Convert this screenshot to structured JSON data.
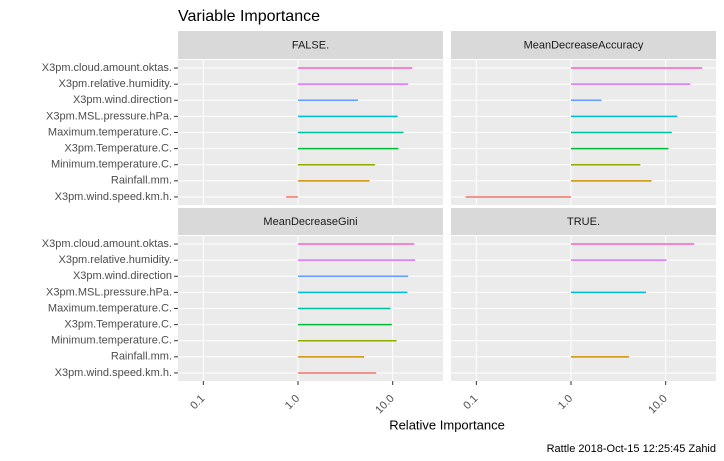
{
  "chart_data": {
    "type": "bar",
    "title": "Variable Importance",
    "x_label": "Relative Importance",
    "caption": "Rattle 2018-Oct-15 12:25:45 Zahid",
    "log_x": true,
    "grid": true,
    "categories": [
      "X3pm.cloud.amount.oktas.",
      "X3pm.relative.humidity.",
      "X3pm.wind.direction",
      "X3pm.MSL.pressure.hPa.",
      "Maximum.temperature.C.",
      "X3pm.Temperature.C.",
      "Minimum.temperature.C.",
      "Rainfall.mm.",
      "X3pm.wind.speed.km.h."
    ],
    "colors": [
      "#FF61C3",
      "#DB72FB",
      "#619CFF",
      "#00B9E3",
      "#00C19F",
      "#00BA38",
      "#93AA00",
      "#D39200",
      "#F8766D"
    ],
    "xlim": [
      0.054,
      34
    ],
    "xticks": [
      0.1,
      {
        "value": 1,
        "label": "1.0"
      },
      {
        "value": 10,
        "label": "10.0"
      }
    ],
    "base": 1,
    "facets": [
      {
        "name": "FALSE.",
        "values": [
          16.1,
          14.6,
          4.3,
          11.3,
          13.0,
          11.5,
          6.5,
          5.7,
          0.75
        ]
      },
      {
        "name": "MeanDecreaseAccuracy",
        "values": [
          24.3,
          18.2,
          2.1,
          13.3,
          11.6,
          10.7,
          5.4,
          7.1,
          0.077
        ]
      },
      {
        "name": "MeanDecreaseGini",
        "values": [
          16.9,
          17.3,
          14.6,
          14.3,
          9.5,
          9.8,
          11.0,
          5.0,
          6.7
        ]
      },
      {
        "name": "TRUE.",
        "values": [
          20.0,
          10.2,
          null,
          6.2,
          null,
          null,
          null,
          4.1,
          null
        ]
      }
    ]
  }
}
